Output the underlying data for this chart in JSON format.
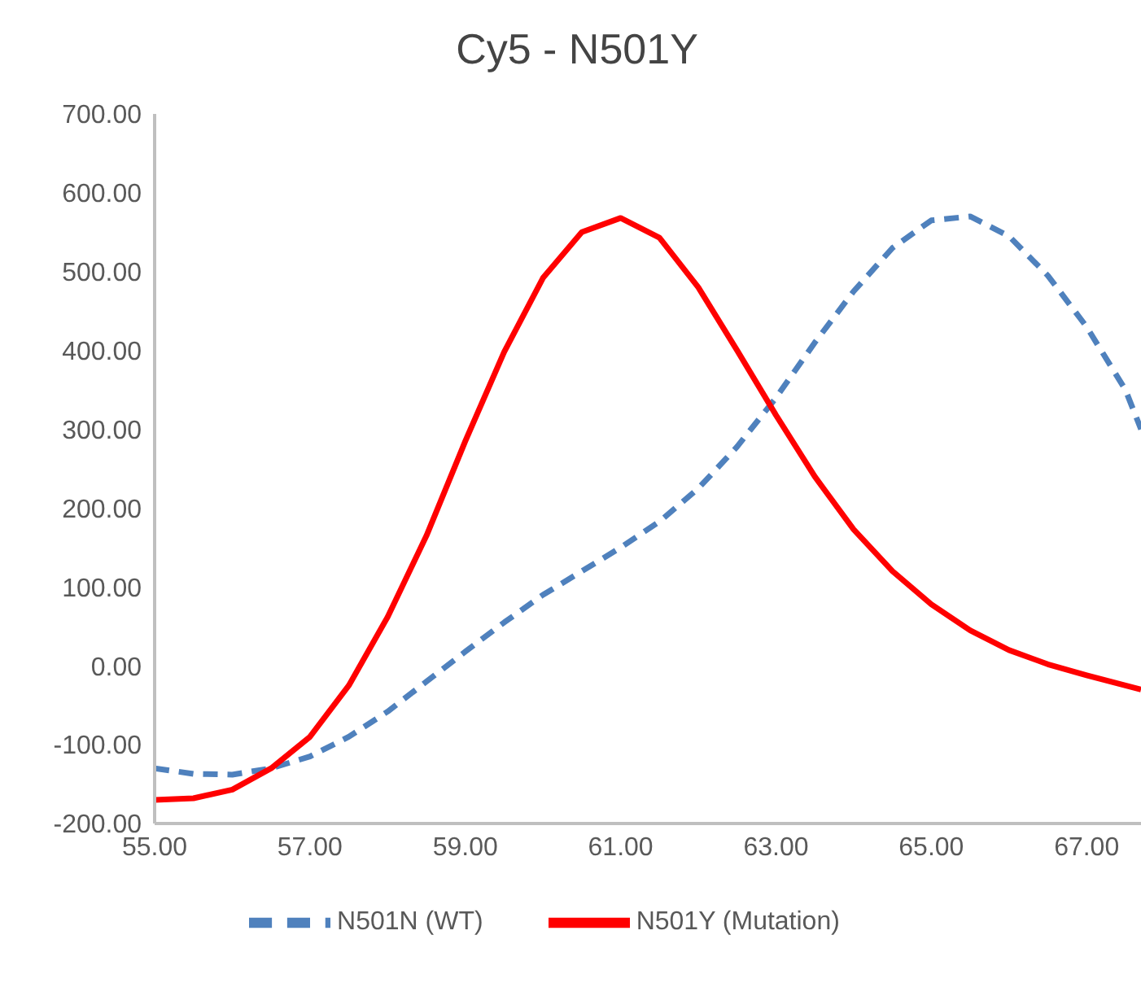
{
  "chart_data": {
    "type": "line",
    "title": "Cy5 - N501Y",
    "x": [
      55,
      55.5,
      56,
      56.5,
      57,
      57.5,
      58,
      58.5,
      59,
      59.5,
      60,
      60.5,
      61,
      61.5,
      62,
      62.5,
      63,
      63.5,
      64,
      64.5,
      65,
      65.5,
      66,
      66.5,
      67,
      67.5,
      67.7
    ],
    "series": [
      {
        "name": "N501N (WT)",
        "color": "#4f81bd",
        "line_style": "dashed",
        "values": [
          -130,
          -137,
          -138,
          -130,
          -115,
          -90,
          -58,
          -20,
          18,
          55,
          90,
          120,
          150,
          183,
          225,
          278,
          340,
          410,
          475,
          530,
          565,
          570,
          545,
          495,
          430,
          350,
          300
        ]
      },
      {
        "name": "N501Y (Mutation)",
        "color": "#ff0000",
        "line_style": "solid",
        "values": [
          -170,
          -168,
          -157,
          -130,
          -90,
          -25,
          62,
          165,
          285,
          398,
          492,
          550,
          568,
          543,
          480,
          400,
          318,
          240,
          173,
          120,
          78,
          45,
          20,
          2,
          -12,
          -25,
          -30
        ]
      }
    ],
    "xlim": [
      55,
      67.7
    ],
    "xticks": [
      {
        "value": 55,
        "label": "55.00"
      },
      {
        "value": 57,
        "label": "57.00"
      },
      {
        "value": 59,
        "label": "59.00"
      },
      {
        "value": 61,
        "label": "61.00"
      },
      {
        "value": 63,
        "label": "63.00"
      },
      {
        "value": 65,
        "label": "65.00"
      },
      {
        "value": 67,
        "label": "67.00"
      }
    ],
    "ylim": [
      -200,
      700
    ],
    "yticks": [
      {
        "value": -200,
        "label": "-200.00"
      },
      {
        "value": -100,
        "label": "-100.00"
      },
      {
        "value": 0,
        "label": "0.00"
      },
      {
        "value": 100,
        "label": "100.00"
      },
      {
        "value": 200,
        "label": "200.00"
      },
      {
        "value": 300,
        "label": "300.00"
      },
      {
        "value": 400,
        "label": "400.00"
      },
      {
        "value": 500,
        "label": "500.00"
      },
      {
        "value": 600,
        "label": "600.00"
      },
      {
        "value": 700,
        "label": "700.00"
      }
    ],
    "grid": false,
    "legend": "bottom",
    "marker": "none"
  }
}
